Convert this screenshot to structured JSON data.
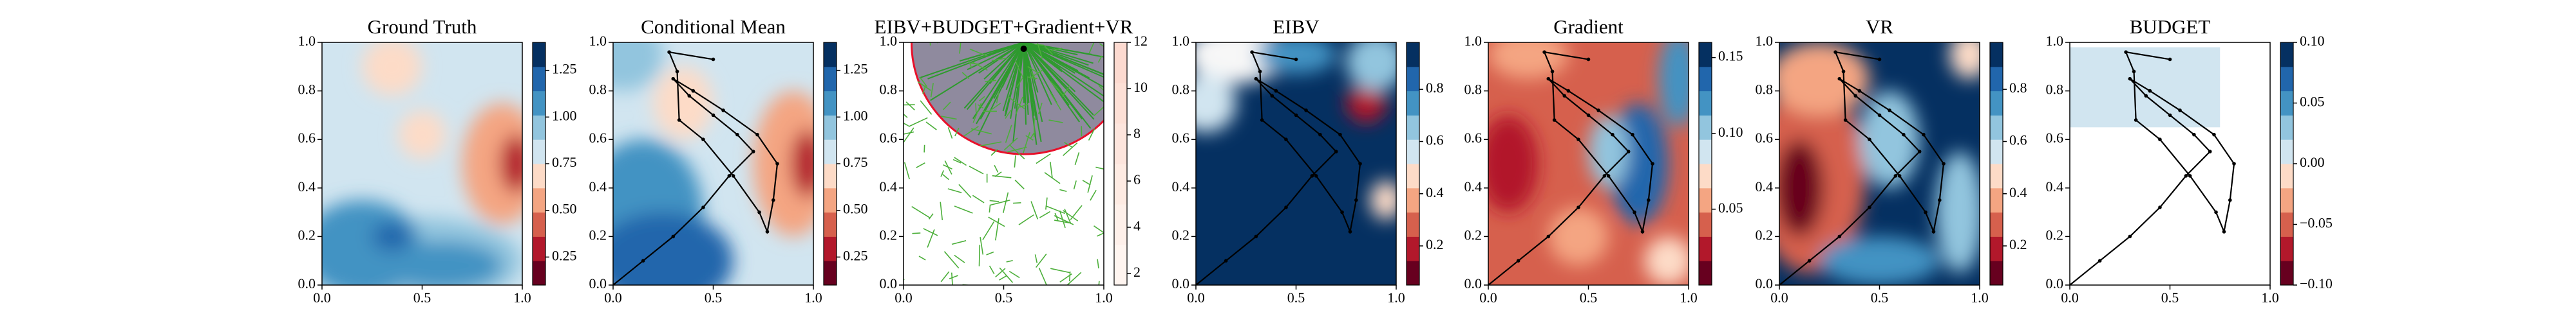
{
  "chart_data": [
    {
      "type": "heatmap",
      "title": "Ground Truth",
      "xlim": [
        0,
        1
      ],
      "ylim": [
        0,
        1
      ],
      "xticks": [
        {
          "value": 0,
          "label": "0.0"
        },
        {
          "value": 0.5,
          "label": "0.5"
        },
        {
          "value": 1,
          "label": "1.0"
        }
      ],
      "yticks": [
        {
          "value": 0,
          "label": "0.0"
        },
        {
          "value": 0.2,
          "label": "0.2"
        },
        {
          "value": 0.4,
          "label": "0.4"
        },
        {
          "value": 0.6,
          "label": "0.6"
        },
        {
          "value": 0.8,
          "label": "0.8"
        },
        {
          "value": 1,
          "label": "1.0"
        }
      ],
      "colorbar": {
        "lim": [
          0.1,
          1.4
        ],
        "ticks": [
          {
            "value": 0.25,
            "label": "0.25"
          },
          {
            "value": 0.5,
            "label": "0.50"
          },
          {
            "value": 0.75,
            "label": "0.75"
          },
          {
            "value": 1,
            "label": "1.00"
          },
          {
            "value": 1.25,
            "label": "1.25"
          }
        ],
        "colors": [
          "#67001f",
          "#b2182b",
          "#d6604d",
          "#f4a582",
          "#fddbc7",
          "#d1e5f0",
          "#92c5de",
          "#4393c3",
          "#2166ac",
          "#053061"
        ]
      }
    },
    {
      "type": "heatmap",
      "title": "Conditional Mean",
      "xlim": [
        0,
        1
      ],
      "ylim": [
        0,
        1
      ],
      "xticks": [
        {
          "value": 0,
          "label": "0.0"
        },
        {
          "value": 0.5,
          "label": "0.5"
        },
        {
          "value": 1,
          "label": "1.0"
        }
      ],
      "yticks": [
        {
          "value": 0,
          "label": "0.0"
        },
        {
          "value": 0.2,
          "label": "0.2"
        },
        {
          "value": 0.4,
          "label": "0.4"
        },
        {
          "value": 0.6,
          "label": "0.6"
        },
        {
          "value": 0.8,
          "label": "0.8"
        },
        {
          "value": 1,
          "label": "1.0"
        }
      ],
      "colorbar": {
        "lim": [
          0.1,
          1.4
        ],
        "ticks": [
          {
            "value": 0.25,
            "label": "0.25"
          },
          {
            "value": 0.5,
            "label": "0.50"
          },
          {
            "value": 0.75,
            "label": "0.75"
          },
          {
            "value": 1,
            "label": "1.00"
          },
          {
            "value": 1.25,
            "label": "1.25"
          }
        ],
        "colors": [
          "#67001f",
          "#b2182b",
          "#d6604d",
          "#f4a582",
          "#fddbc7",
          "#d1e5f0",
          "#92c5de",
          "#4393c3",
          "#2166ac",
          "#053061"
        ]
      },
      "path": {
        "x": [
          0.0,
          0.15,
          0.3,
          0.45,
          0.58,
          0.7,
          0.62,
          0.5,
          0.38,
          0.3,
          0.4,
          0.55,
          0.72,
          0.82,
          0.8,
          0.77,
          0.73,
          0.6,
          0.45,
          0.33,
          0.32,
          0.28,
          0.5
        ],
        "y": [
          0.0,
          0.1,
          0.2,
          0.32,
          0.45,
          0.55,
          0.62,
          0.7,
          0.78,
          0.85,
          0.8,
          0.72,
          0.62,
          0.5,
          0.35,
          0.22,
          0.3,
          0.45,
          0.6,
          0.68,
          0.88,
          0.96,
          0.93
        ]
      }
    },
    {
      "type": "heatmap",
      "title": "EIBV+BUDGET+Gradient+VR",
      "xlim": [
        0,
        1
      ],
      "ylim": [
        0,
        1
      ],
      "xticks": [
        {
          "value": 0,
          "label": "0.0"
        },
        {
          "value": 0.5,
          "label": "0.5"
        },
        {
          "value": 1,
          "label": "1.0"
        }
      ],
      "yticks": [
        {
          "value": 0,
          "label": "0.0"
        },
        {
          "value": 0.2,
          "label": "0.2"
        },
        {
          "value": 0.4,
          "label": "0.4"
        },
        {
          "value": 0.6,
          "label": "0.6"
        },
        {
          "value": 0.8,
          "label": "0.8"
        },
        {
          "value": 1,
          "label": "1.0"
        }
      ],
      "colorbar": {
        "lim": [
          1.5,
          12
        ],
        "ticks": [
          2,
          4,
          6,
          8,
          10,
          12
        ],
        "colors": [
          "#fff5f0",
          "#fef0ea",
          "#feebe3",
          "#fde5dd",
          "#fde0d6",
          "#fcdad0"
        ]
      }
    },
    {
      "type": "heatmap",
      "title": "EIBV",
      "xlim": [
        0,
        1
      ],
      "ylim": [
        0,
        1
      ],
      "xticks": [
        {
          "value": 0,
          "label": "0.0"
        },
        {
          "value": 0.5,
          "label": "0.5"
        },
        {
          "value": 1,
          "label": "1.0"
        }
      ],
      "yticks": [
        {
          "value": 0,
          "label": "0.0"
        },
        {
          "value": 0.2,
          "label": "0.2"
        },
        {
          "value": 0.4,
          "label": "0.4"
        },
        {
          "value": 0.6,
          "label": "0.6"
        },
        {
          "value": 0.8,
          "label": "0.8"
        },
        {
          "value": 1,
          "label": "1.0"
        }
      ],
      "colorbar": {
        "lim": [
          0.05,
          0.98
        ],
        "ticks": [
          {
            "value": 0.2,
            "label": "0.2"
          },
          {
            "value": 0.4,
            "label": "0.4"
          },
          {
            "value": 0.6,
            "label": "0.6"
          },
          {
            "value": 0.8,
            "label": "0.8"
          }
        ],
        "colors": [
          "#67001f",
          "#b2182b",
          "#d6604d",
          "#f4a582",
          "#fddbc7",
          "#d1e5f0",
          "#92c5de",
          "#4393c3",
          "#2166ac",
          "#053061"
        ]
      },
      "path": {
        "x": [
          0.0,
          0.15,
          0.3,
          0.45,
          0.58,
          0.7,
          0.62,
          0.5,
          0.38,
          0.3,
          0.4,
          0.55,
          0.72,
          0.82,
          0.8,
          0.77,
          0.73,
          0.6,
          0.45,
          0.33,
          0.32,
          0.28,
          0.5
        ],
        "y": [
          0.0,
          0.1,
          0.2,
          0.32,
          0.45,
          0.55,
          0.62,
          0.7,
          0.78,
          0.85,
          0.8,
          0.72,
          0.62,
          0.5,
          0.35,
          0.22,
          0.3,
          0.45,
          0.6,
          0.68,
          0.88,
          0.96,
          0.93
        ]
      }
    },
    {
      "type": "heatmap",
      "title": "Gradient",
      "xlim": [
        0,
        1
      ],
      "ylim": [
        0,
        1
      ],
      "xticks": [
        {
          "value": 0,
          "label": "0.0"
        },
        {
          "value": 0.5,
          "label": "0.5"
        },
        {
          "value": 1,
          "label": "1.0"
        }
      ],
      "yticks": [
        {
          "value": 0,
          "label": "0.0"
        },
        {
          "value": 0.2,
          "label": "0.2"
        },
        {
          "value": 0.4,
          "label": "0.4"
        },
        {
          "value": 0.6,
          "label": "0.6"
        },
        {
          "value": 0.8,
          "label": "0.8"
        },
        {
          "value": 1,
          "label": "1.0"
        }
      ],
      "colorbar": {
        "lim": [
          0.0,
          0.16
        ],
        "ticks": [
          {
            "value": 0.05,
            "label": "0.05"
          },
          {
            "value": 0.1,
            "label": "0.10"
          },
          {
            "value": 0.15,
            "label": "0.15"
          }
        ],
        "colors": [
          "#67001f",
          "#b2182b",
          "#d6604d",
          "#f4a582",
          "#fddbc7",
          "#d1e5f0",
          "#92c5de",
          "#4393c3",
          "#2166ac",
          "#053061"
        ]
      },
      "path": {
        "x": [
          0.0,
          0.15,
          0.3,
          0.45,
          0.58,
          0.7,
          0.62,
          0.5,
          0.38,
          0.3,
          0.4,
          0.55,
          0.72,
          0.82,
          0.8,
          0.77,
          0.73,
          0.6,
          0.45,
          0.33,
          0.32,
          0.28,
          0.5
        ],
        "y": [
          0.0,
          0.1,
          0.2,
          0.32,
          0.45,
          0.55,
          0.62,
          0.7,
          0.78,
          0.85,
          0.8,
          0.72,
          0.62,
          0.5,
          0.35,
          0.22,
          0.3,
          0.45,
          0.6,
          0.68,
          0.88,
          0.96,
          0.93
        ]
      }
    },
    {
      "type": "heatmap",
      "title": "VR",
      "xlim": [
        0,
        1
      ],
      "ylim": [
        0,
        1
      ],
      "xticks": [
        {
          "value": 0,
          "label": "0.0"
        },
        {
          "value": 0.5,
          "label": "0.5"
        },
        {
          "value": 1,
          "label": "1.0"
        }
      ],
      "yticks": [
        {
          "value": 0,
          "label": "0.0"
        },
        {
          "value": 0.2,
          "label": "0.2"
        },
        {
          "value": 0.4,
          "label": "0.4"
        },
        {
          "value": 0.6,
          "label": "0.6"
        },
        {
          "value": 0.8,
          "label": "0.8"
        },
        {
          "value": 1,
          "label": "1.0"
        }
      ],
      "colorbar": {
        "lim": [
          0.05,
          0.98
        ],
        "ticks": [
          {
            "value": 0.2,
            "label": "0.2"
          },
          {
            "value": 0.4,
            "label": "0.4"
          },
          {
            "value": 0.6,
            "label": "0.6"
          },
          {
            "value": 0.8,
            "label": "0.8"
          }
        ],
        "colors": [
          "#67001f",
          "#b2182b",
          "#d6604d",
          "#f4a582",
          "#fddbc7",
          "#d1e5f0",
          "#92c5de",
          "#4393c3",
          "#2166ac",
          "#053061"
        ]
      },
      "path": {
        "x": [
          0.0,
          0.15,
          0.3,
          0.45,
          0.58,
          0.7,
          0.62,
          0.5,
          0.38,
          0.3,
          0.4,
          0.55,
          0.72,
          0.82,
          0.8,
          0.77,
          0.73,
          0.6,
          0.45,
          0.33,
          0.32,
          0.28,
          0.5
        ],
        "y": [
          0.0,
          0.1,
          0.2,
          0.32,
          0.45,
          0.55,
          0.62,
          0.7,
          0.78,
          0.85,
          0.8,
          0.72,
          0.62,
          0.5,
          0.35,
          0.22,
          0.3,
          0.45,
          0.6,
          0.68,
          0.88,
          0.96,
          0.93
        ]
      }
    },
    {
      "type": "heatmap",
      "title": "BUDGET",
      "xlim": [
        0,
        1
      ],
      "ylim": [
        0,
        1
      ],
      "xticks": [
        {
          "value": 0,
          "label": "0.0"
        },
        {
          "value": 0.5,
          "label": "0.5"
        },
        {
          "value": 1,
          "label": "1.0"
        }
      ],
      "yticks": [
        {
          "value": 0,
          "label": "0.0"
        },
        {
          "value": 0.2,
          "label": "0.2"
        },
        {
          "value": 0.4,
          "label": "0.4"
        },
        {
          "value": 0.6,
          "label": "0.6"
        },
        {
          "value": 0.8,
          "label": "0.8"
        },
        {
          "value": 1,
          "label": "1.0"
        }
      ],
      "colorbar": {
        "lim": [
          -0.1,
          0.1
        ],
        "ticks": [
          {
            "value": -0.1,
            "label": "−0.10"
          },
          {
            "value": -0.05,
            "label": "−0.05"
          },
          {
            "value": 0,
            "label": "0.00"
          },
          {
            "value": 0.05,
            "label": "0.05"
          },
          {
            "value": 0.1,
            "label": "0.10"
          }
        ],
        "colors": [
          "#67001f",
          "#b2182b",
          "#d6604d",
          "#f4a582",
          "#fddbc7",
          "#d1e5f0",
          "#92c5de",
          "#4393c3",
          "#2166ac",
          "#053061"
        ]
      },
      "path": {
        "x": [
          0.0,
          0.15,
          0.3,
          0.45,
          0.58,
          0.7,
          0.62,
          0.5,
          0.38,
          0.3,
          0.4,
          0.55,
          0.72,
          0.82,
          0.8,
          0.77,
          0.73,
          0.6,
          0.45,
          0.33,
          0.32,
          0.28,
          0.5
        ],
        "y": [
          0.0,
          0.1,
          0.2,
          0.32,
          0.45,
          0.55,
          0.62,
          0.7,
          0.78,
          0.85,
          0.8,
          0.72,
          0.62,
          0.5,
          0.35,
          0.22,
          0.3,
          0.45,
          0.6,
          0.68,
          0.88,
          0.96,
          0.93
        ]
      }
    }
  ]
}
